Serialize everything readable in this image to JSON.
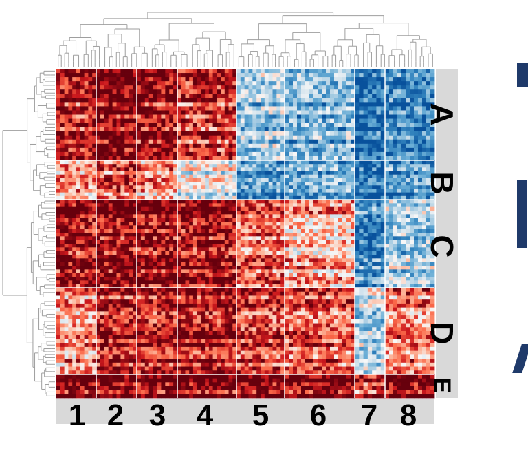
{
  "chart_data": {
    "type": "heatmap",
    "title": "",
    "columns": [
      {
        "label": "1",
        "cells": 10
      },
      {
        "label": "2",
        "cells": 10
      },
      {
        "label": "3",
        "cells": 10
      },
      {
        "label": "4",
        "cells": 15
      },
      {
        "label": "5",
        "cells": 12
      },
      {
        "label": "6",
        "cells": 17
      },
      {
        "label": "7",
        "cells": 7
      },
      {
        "label": "8",
        "cells": 12
      }
    ],
    "row_clusters": [
      {
        "label": "A",
        "rows": 22,
        "mean": [
          0.7,
          0.9,
          0.8,
          0.6,
          -0.4,
          -0.5,
          -0.95,
          -0.8
        ]
      },
      {
        "label": "B",
        "rows": 11,
        "mean": [
          0.3,
          0.5,
          0.3,
          -0.1,
          -0.7,
          -0.6,
          -0.95,
          -0.7
        ]
      },
      {
        "label": "C",
        "rows": 24,
        "mean": [
          0.85,
          0.9,
          0.9,
          0.85,
          0.55,
          0.3,
          -0.7,
          -0.3
        ]
      },
      {
        "label": "D",
        "rows": 22,
        "mean": [
          0.4,
          0.8,
          0.8,
          0.85,
          0.7,
          0.6,
          -0.2,
          0.5
        ]
      },
      {
        "label": "E",
        "rows": 6,
        "mean": [
          0.95,
          0.95,
          0.95,
          0.95,
          0.95,
          0.95,
          0.6,
          0.95
        ]
      }
    ],
    "color_scale": {
      "low": "#08519c",
      "mid": "#f7f7f7",
      "high": "#67000d"
    },
    "dendrogram_top": true,
    "dendrogram_left": true
  },
  "colors": {
    "frame": "#d9d9d9",
    "divider": "#ffffff",
    "dendrogram": "#9e9e9e",
    "cutoff": "#1f3a6a"
  }
}
